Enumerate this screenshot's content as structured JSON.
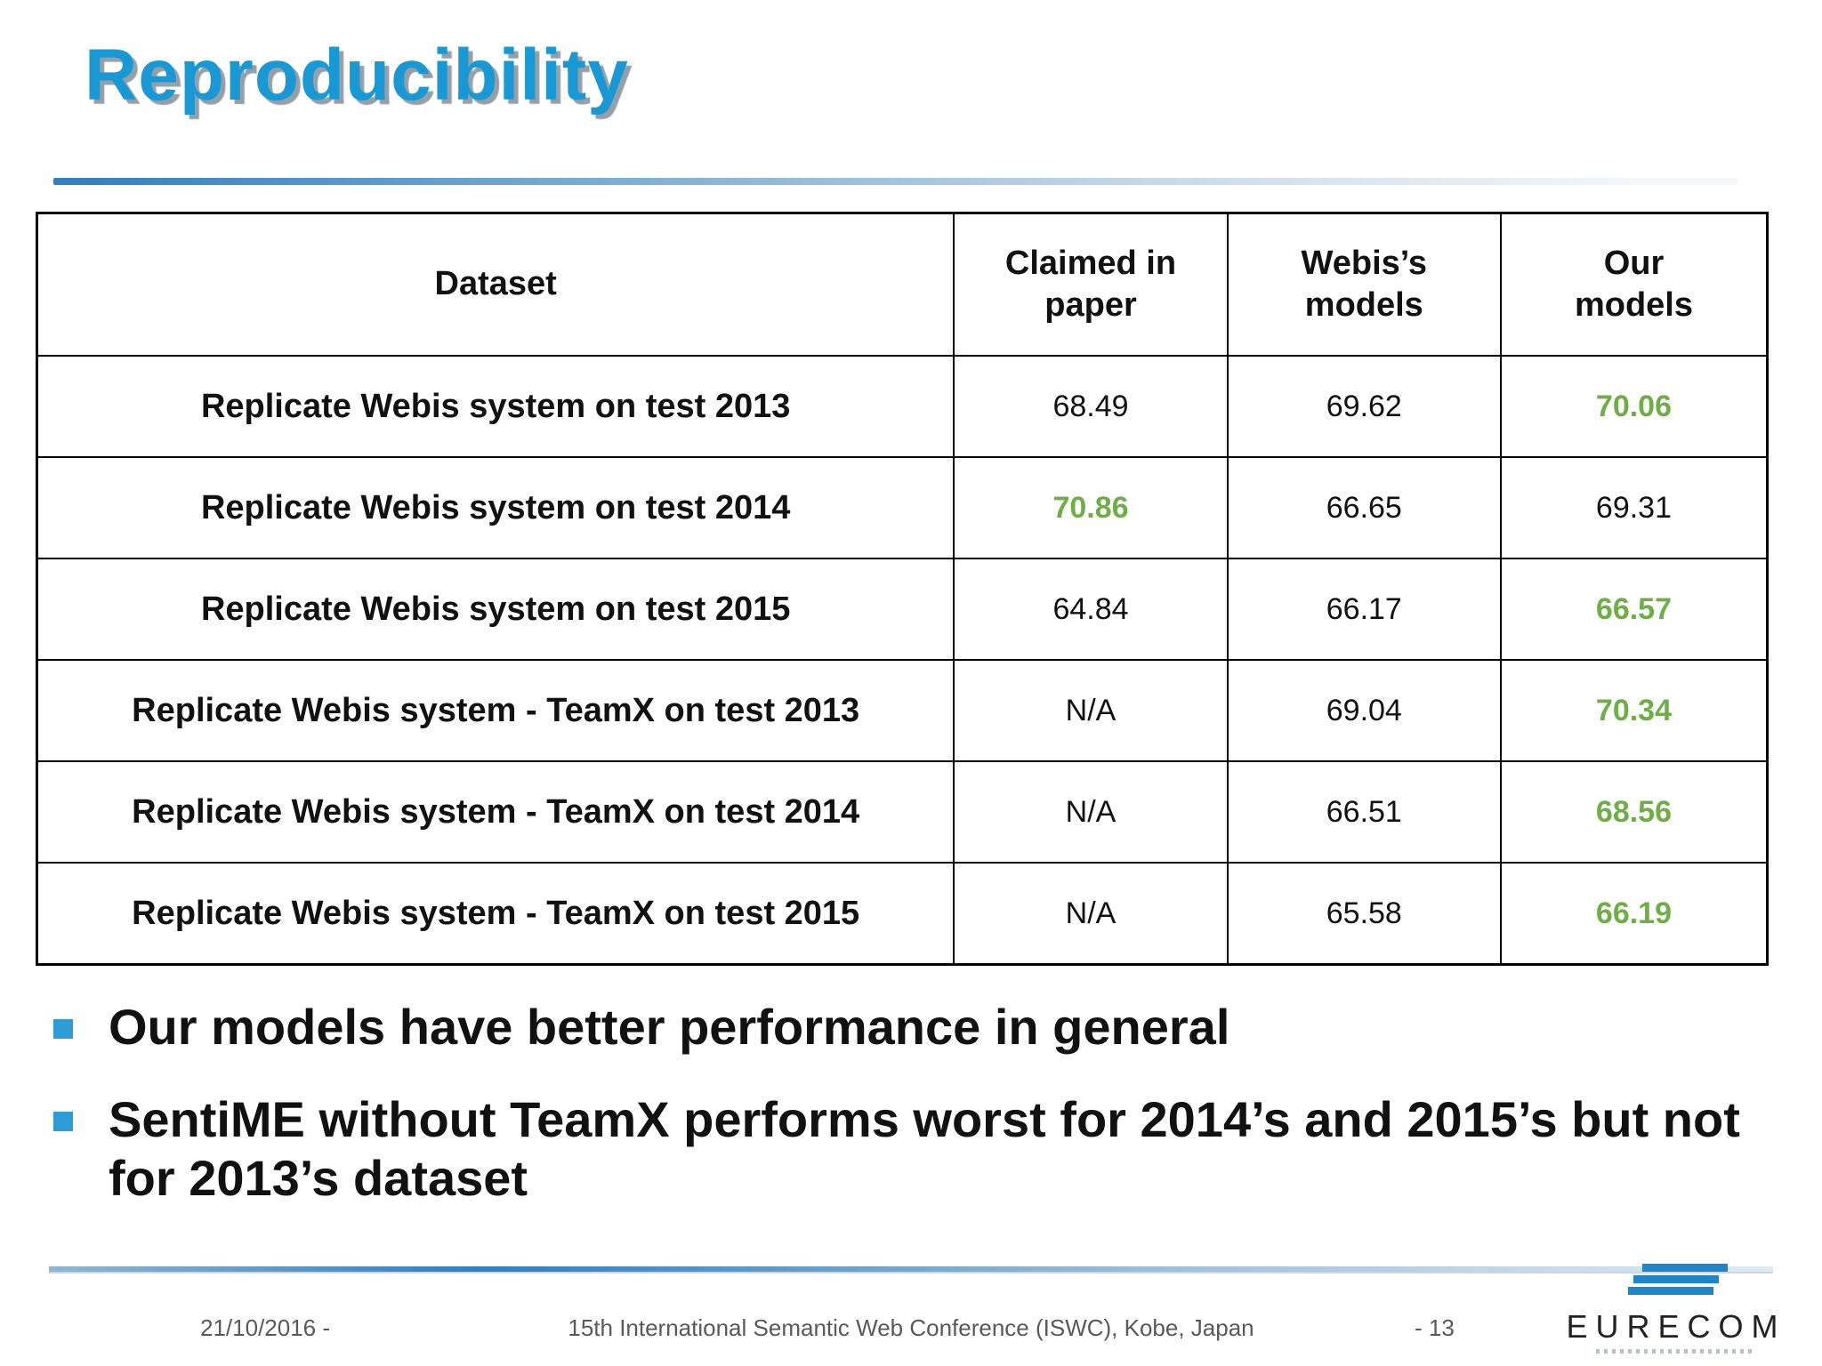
{
  "slide": {
    "title": "Reproducibility"
  },
  "colors": {
    "title_blue": "#1899d6",
    "accent_blue": "#2e9bd6",
    "highlight_green": "#6fad47",
    "footer_gray": "#595959",
    "table_border": "#000000"
  },
  "table": {
    "headers": [
      "Dataset",
      "Claimed in paper",
      "Webis’s models",
      "Our models"
    ],
    "rows": [
      {
        "dataset": "Replicate Webis system on test 2013",
        "claimed": "68.49",
        "webis": "69.62",
        "our": "70.06",
        "highlight": "our"
      },
      {
        "dataset": "Replicate Webis system on test 2014",
        "claimed": "70.86",
        "webis": "66.65",
        "our": "69.31",
        "highlight": "claimed"
      },
      {
        "dataset": "Replicate Webis system on test 2015",
        "claimed": "64.84",
        "webis": "66.17",
        "our": "66.57",
        "highlight": "our"
      },
      {
        "dataset": "Replicate Webis system - TeamX on test 2013",
        "claimed": "N/A",
        "webis": "69.04",
        "our": "70.34",
        "highlight": "our"
      },
      {
        "dataset": "Replicate Webis system - TeamX on test 2014",
        "claimed": "N/A",
        "webis": "66.51",
        "our": "68.56",
        "highlight": "our"
      },
      {
        "dataset": "Replicate Webis system - TeamX on test 2015",
        "claimed": "N/A",
        "webis": "65.58",
        "our": "66.19",
        "highlight": "our"
      }
    ]
  },
  "bullets": [
    "Our models have better performance in general",
    "SentiME without TeamX performs worst for 2014’s and 2015’s but not for 2013’s dataset"
  ],
  "footer": {
    "date": "21/10/2016 -",
    "conference": "15th International Semantic Web Conference (ISWC), Kobe, Japan",
    "page": "- 13",
    "logo_text": "EURECOM"
  }
}
